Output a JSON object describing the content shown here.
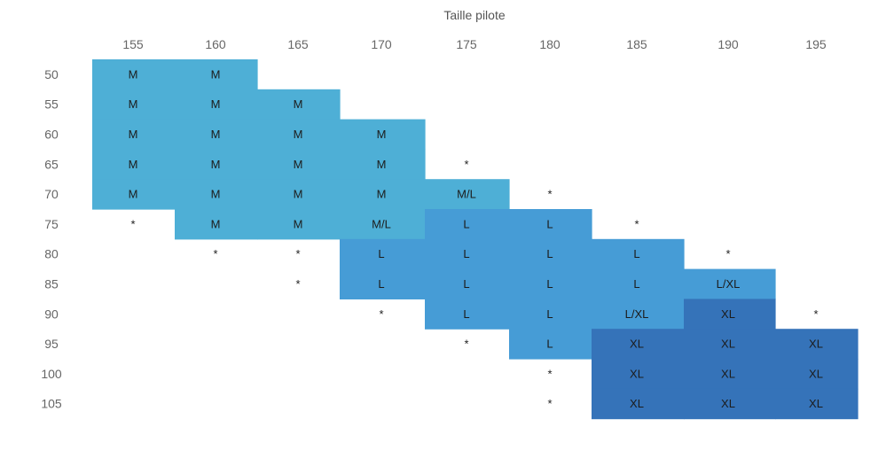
{
  "chart_data": {
    "type": "table",
    "title": "",
    "xlabel": "Taille pilote",
    "ylabel": "",
    "columns": [
      "155",
      "160",
      "165",
      "170",
      "175",
      "180",
      "185",
      "190",
      "195"
    ],
    "rows": [
      "50",
      "55",
      "60",
      "65",
      "70",
      "75",
      "80",
      "85",
      "90",
      "95",
      "100",
      "105"
    ],
    "cells": [
      [
        "M",
        "M",
        "",
        "",
        "",
        "",
        "",
        "",
        ""
      ],
      [
        "M",
        "M",
        "M",
        "",
        "",
        "",
        "",
        "",
        ""
      ],
      [
        "M",
        "M",
        "M",
        "M",
        "",
        "",
        "",
        "",
        ""
      ],
      [
        "M",
        "M",
        "M",
        "M",
        "*",
        "",
        "",
        "",
        ""
      ],
      [
        "M",
        "M",
        "M",
        "M",
        "M/L",
        "*",
        "",
        "",
        ""
      ],
      [
        "*",
        "M",
        "M",
        "M/L",
        "L",
        "L",
        "*",
        "",
        ""
      ],
      [
        "",
        "*",
        "*",
        "L",
        "L",
        "L",
        "L",
        "*",
        ""
      ],
      [
        "",
        "",
        "*",
        "L",
        "L",
        "L",
        "L",
        "L/XL",
        ""
      ],
      [
        "",
        "",
        "",
        "*",
        "L",
        "L",
        "L/XL",
        "XL",
        "*"
      ],
      [
        "",
        "",
        "",
        "",
        "*",
        "L",
        "XL",
        "XL",
        "XL"
      ],
      [
        "",
        "",
        "",
        "",
        "",
        "*",
        "XL",
        "XL",
        "XL"
      ],
      [
        "",
        "",
        "",
        "",
        "",
        "*",
        "XL",
        "XL",
        "XL"
      ]
    ],
    "size_colors": {
      "M": "#4eafd6",
      "M/L": "#4eafd6",
      "L": "#469cd6",
      "L/XL": "#469cd6",
      "XL": "#3573b9"
    },
    "grid": false
  }
}
